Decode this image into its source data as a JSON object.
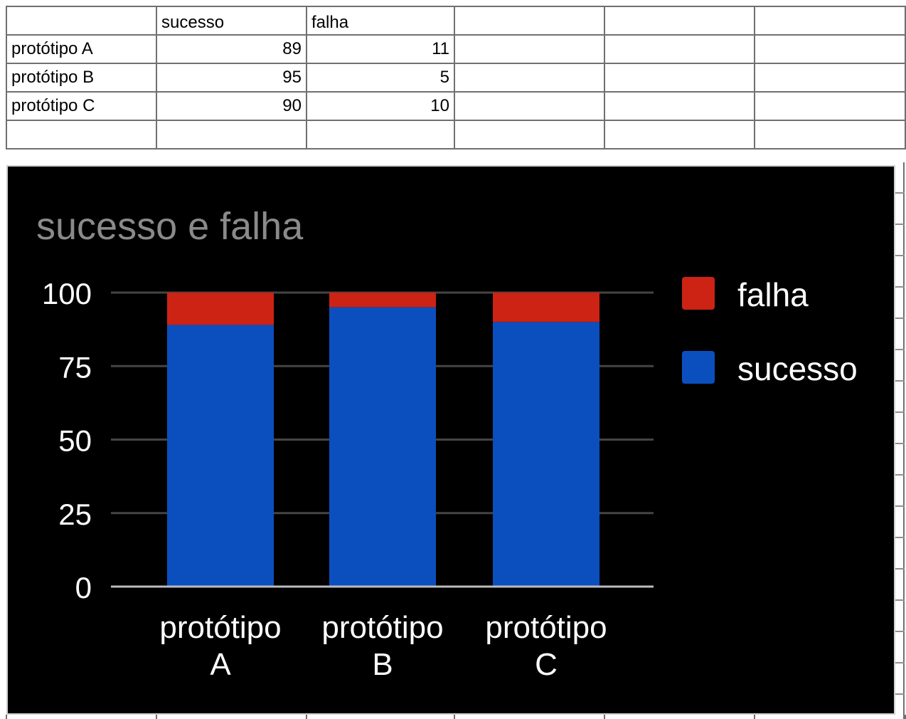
{
  "sheet": {
    "header": [
      "",
      "sucesso",
      "falha",
      "",
      "",
      ""
    ],
    "rows": [
      [
        "protótipo A",
        "89",
        "11"
      ],
      [
        "protótipo B",
        "95",
        "5"
      ],
      [
        "protótipo C",
        "90",
        "10"
      ]
    ]
  },
  "chart_data": {
    "type": "bar",
    "stacked": true,
    "title": "sucesso e falha",
    "categories": [
      [
        "protótipo",
        "A"
      ],
      [
        "protótipo",
        "B"
      ],
      [
        "protótipo",
        "C"
      ]
    ],
    "series": [
      {
        "name": "sucesso",
        "values": [
          89,
          95,
          90
        ],
        "color": "#0b4fbf"
      },
      {
        "name": "falha",
        "values": [
          11,
          5,
          10
        ],
        "color": "#cc2314"
      }
    ],
    "ylim": [
      0,
      100
    ],
    "yticks": [
      0,
      25,
      50,
      75,
      100
    ],
    "legend": "right",
    "legend_order": [
      "falha",
      "sucesso"
    ],
    "grid": true,
    "colors": {
      "background": "#000000",
      "title": "#8a8a8a",
      "text": "#ffffff",
      "grid": "#444444",
      "axis": "#bbbbbb"
    }
  }
}
